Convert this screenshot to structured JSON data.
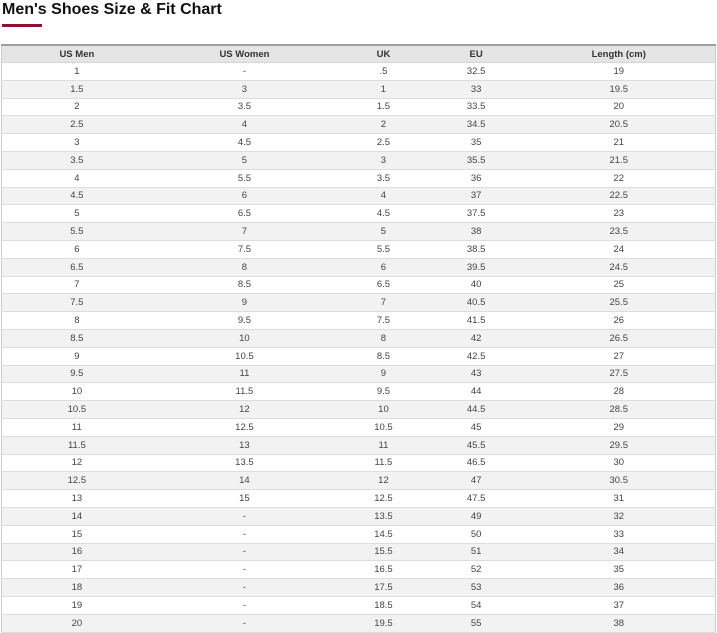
{
  "page": {
    "title": "Men's Shoes Size & Fit Chart"
  },
  "colors": {
    "accent": "#8c1432",
    "header_bg": "#e5e5e5",
    "stripe_bg": "#f2f2f2",
    "border": "#dddddd"
  },
  "table": {
    "columns": [
      "US Men",
      "US Women",
      "UK",
      "EU",
      "Length (cm)"
    ],
    "rows": [
      [
        "1",
        "-",
        ".5",
        "32.5",
        "19"
      ],
      [
        "1.5",
        "3",
        "1",
        "33",
        "19.5"
      ],
      [
        "2",
        "3.5",
        "1.5",
        "33.5",
        "20"
      ],
      [
        "2.5",
        "4",
        "2",
        "34.5",
        "20.5"
      ],
      [
        "3",
        "4.5",
        "2.5",
        "35",
        "21"
      ],
      [
        "3.5",
        "5",
        "3",
        "35.5",
        "21.5"
      ],
      [
        "4",
        "5.5",
        "3.5",
        "36",
        "22"
      ],
      [
        "4.5",
        "6",
        "4",
        "37",
        "22.5"
      ],
      [
        "5",
        "6.5",
        "4.5",
        "37.5",
        "23"
      ],
      [
        "5.5",
        "7",
        "5",
        "38",
        "23.5"
      ],
      [
        "6",
        "7.5",
        "5.5",
        "38.5",
        "24"
      ],
      [
        "6.5",
        "8",
        "6",
        "39.5",
        "24.5"
      ],
      [
        "7",
        "8.5",
        "6.5",
        "40",
        "25"
      ],
      [
        "7.5",
        "9",
        "7",
        "40.5",
        "25.5"
      ],
      [
        "8",
        "9.5",
        "7.5",
        "41.5",
        "26"
      ],
      [
        "8.5",
        "10",
        "8",
        "42",
        "26.5"
      ],
      [
        "9",
        "10.5",
        "8.5",
        "42.5",
        "27"
      ],
      [
        "9.5",
        "11",
        "9",
        "43",
        "27.5"
      ],
      [
        "10",
        "11.5",
        "9.5",
        "44",
        "28"
      ],
      [
        "10.5",
        "12",
        "10",
        "44.5",
        "28.5"
      ],
      [
        "11",
        "12.5",
        "10.5",
        "45",
        "29"
      ],
      [
        "11.5",
        "13",
        "11",
        "45.5",
        "29.5"
      ],
      [
        "12",
        "13.5",
        "11.5",
        "46.5",
        "30"
      ],
      [
        "12.5",
        "14",
        "12",
        "47",
        "30.5"
      ],
      [
        "13",
        "15",
        "12.5",
        "47.5",
        "31"
      ],
      [
        "14",
        "-",
        "13.5",
        "49",
        "32"
      ],
      [
        "15",
        "-",
        "14.5",
        "50",
        "33"
      ],
      [
        "16",
        "-",
        "15.5",
        "51",
        "34"
      ],
      [
        "17",
        "-",
        "16.5",
        "52",
        "35"
      ],
      [
        "18",
        "-",
        "17.5",
        "53",
        "36"
      ],
      [
        "19",
        "-",
        "18.5",
        "54",
        "37"
      ],
      [
        "20",
        "-",
        "19.5",
        "55",
        "38"
      ]
    ]
  }
}
